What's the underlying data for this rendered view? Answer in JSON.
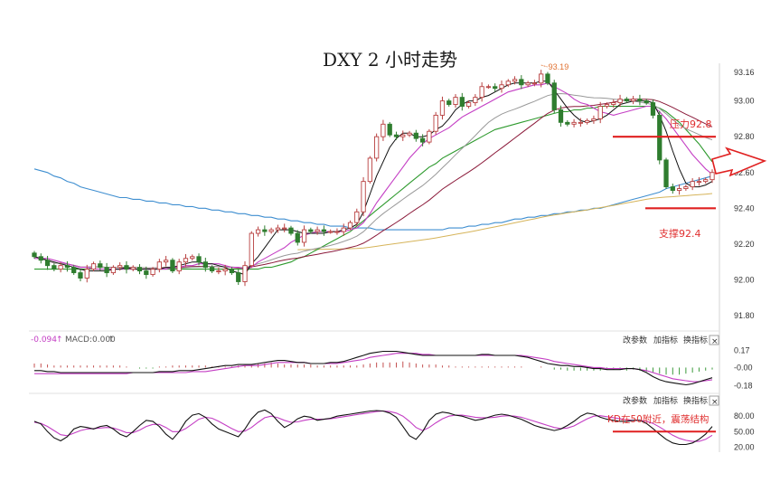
{
  "title": "DXY 2 小时走势",
  "colors": {
    "up": "#b84040",
    "down": "#2f7d2f",
    "ma5": "#111111",
    "ma10": "#c43ec4",
    "ma20": "#999999",
    "ma30": "#8b1a3a",
    "ma60": "#2e9a2e",
    "ma120": "#d6b45a",
    "ma250": "#3e8ed0",
    "annotation": "#e03030",
    "peak_label": "#e0702f"
  },
  "toolbar": {
    "change_params": "改参数",
    "add_indicator": "加指标",
    "switch_indicator": "换指标",
    "close": "×"
  },
  "annotations": {
    "peak": "93.19",
    "resistance": "压力92.8",
    "support": "支撑92.4",
    "kd_note": "KD在50附近，震荡结构",
    "macd_left": "-0.094",
    "macd_label": "MACD:0.000"
  },
  "chart_data": [
    {
      "type": "candlestick",
      "panel": "price",
      "y_ticks": [
        "93.16",
        "93.00",
        "92.80",
        "92.60",
        "92.40",
        "92.20",
        "92.00",
        "91.80"
      ],
      "ylim": [
        91.76,
        93.2
      ],
      "peak_value": 93.19,
      "resistance_level": 92.8,
      "support_level": 92.4,
      "close": [
        92.13,
        92.11,
        92.08,
        92.06,
        92.08,
        92.07,
        92.04,
        92.01,
        92.06,
        92.09,
        92.07,
        92.04,
        92.07,
        92.08,
        92.06,
        92.07,
        92.05,
        92.03,
        92.06,
        92.1,
        92.11,
        92.05,
        92.1,
        92.12,
        92.13,
        92.1,
        92.07,
        92.05,
        92.05,
        92.06,
        92.04,
        91.99,
        92.08,
        92.26,
        92.28,
        92.27,
        92.28,
        92.29,
        92.29,
        92.26,
        92.21,
        92.28,
        92.27,
        92.28,
        92.27,
        92.27,
        92.27,
        92.29,
        92.32,
        92.38,
        92.55,
        92.68,
        92.8,
        92.87,
        92.81,
        92.8,
        92.81,
        92.82,
        92.79,
        92.77,
        92.83,
        92.92,
        93.0,
        92.98,
        93.02,
        92.97,
        92.99,
        93.02,
        93.08,
        93.08,
        93.07,
        93.09,
        93.11,
        93.12,
        93.09,
        93.1,
        93.1,
        93.15,
        93.1,
        92.95,
        92.88,
        92.87,
        92.88,
        92.88,
        92.89,
        92.9,
        92.97,
        92.98,
        92.99,
        93.01,
        93.0,
        93.01,
        93.0,
        92.99,
        92.92,
        92.67,
        92.52,
        92.5,
        92.51,
        92.52,
        92.55,
        92.55,
        92.56,
        92.6
      ],
      "ma5": [
        92.13,
        92.12,
        92.11,
        92.1,
        92.09,
        92.08,
        92.07,
        92.06,
        92.05,
        92.05,
        92.05,
        92.05,
        92.06,
        92.06,
        92.07,
        92.06,
        92.06,
        92.06,
        92.06,
        92.06,
        92.07,
        92.07,
        92.08,
        92.09,
        92.1,
        92.1,
        92.09,
        92.09,
        92.08,
        92.07,
        92.05,
        92.04,
        92.03,
        92.09,
        92.13,
        92.18,
        92.23,
        92.28,
        92.28,
        92.28,
        92.27,
        92.26,
        92.26,
        92.26,
        92.26,
        92.27,
        92.27,
        92.28,
        92.29,
        92.31,
        92.38,
        92.48,
        92.58,
        92.66,
        92.74,
        92.79,
        92.82,
        92.82,
        92.8,
        92.8,
        92.81,
        92.84,
        92.86,
        92.9,
        92.95,
        92.98,
        93.0,
        93.0,
        93.02,
        93.03,
        93.05,
        93.07,
        93.09,
        93.1,
        93.1,
        93.1,
        93.1,
        93.11,
        93.11,
        93.06,
        93.01,
        92.96,
        92.92,
        92.89,
        92.88,
        92.89,
        92.9,
        92.92,
        92.95,
        92.98,
        92.99,
        93.0,
        93.0,
        93.0,
        92.99,
        92.92,
        92.83,
        92.72,
        92.62,
        92.54,
        92.52,
        92.52,
        92.53,
        92.55
      ],
      "ma10": [
        92.12,
        92.12,
        92.12,
        92.11,
        92.1,
        92.09,
        92.08,
        92.07,
        92.07,
        92.06,
        92.06,
        92.06,
        92.06,
        92.06,
        92.06,
        92.06,
        92.06,
        92.06,
        92.06,
        92.06,
        92.06,
        92.07,
        92.07,
        92.08,
        92.08,
        92.09,
        92.09,
        92.09,
        92.09,
        92.08,
        92.07,
        92.07,
        92.06,
        92.07,
        92.1,
        92.12,
        92.14,
        92.16,
        92.18,
        92.21,
        92.23,
        92.25,
        92.26,
        92.27,
        92.27,
        92.27,
        92.27,
        92.27,
        92.28,
        92.29,
        92.32,
        92.37,
        92.43,
        92.48,
        92.53,
        92.58,
        92.63,
        92.68,
        92.72,
        92.76,
        92.79,
        92.81,
        92.83,
        92.85,
        92.88,
        92.91,
        92.93,
        92.95,
        92.97,
        92.99,
        93.01,
        93.03,
        93.05,
        93.06,
        93.07,
        93.08,
        93.09,
        93.09,
        93.1,
        93.08,
        93.06,
        93.04,
        93.01,
        92.99,
        92.98,
        92.96,
        92.94,
        92.93,
        92.92,
        92.93,
        92.94,
        92.95,
        92.96,
        92.97,
        92.97,
        92.94,
        92.9,
        92.85,
        92.8,
        92.75,
        92.7,
        92.66,
        92.62,
        92.59
      ],
      "ma60": [
        92.06,
        92.06,
        92.06,
        92.06,
        92.06,
        92.06,
        92.06,
        92.06,
        92.06,
        92.06,
        92.06,
        92.06,
        92.06,
        92.06,
        92.06,
        92.06,
        92.06,
        92.06,
        92.06,
        92.06,
        92.06,
        92.06,
        92.06,
        92.06,
        92.06,
        92.06,
        92.06,
        92.06,
        92.06,
        92.06,
        92.06,
        92.06,
        92.06,
        92.06,
        92.06,
        92.07,
        92.07,
        92.08,
        92.09,
        92.1,
        92.12,
        92.13,
        92.15,
        92.17,
        92.19,
        92.21,
        92.23,
        92.25,
        92.27,
        92.3,
        92.33,
        92.36,
        92.39,
        92.42,
        92.45,
        92.48,
        92.51,
        92.54,
        92.57,
        92.6,
        92.63,
        92.65,
        92.68,
        92.7,
        92.72,
        92.74,
        92.76,
        92.78,
        92.8,
        92.82,
        92.84,
        92.85,
        92.86,
        92.87,
        92.88,
        92.89,
        92.9,
        92.91,
        92.92,
        92.93,
        92.94,
        92.94,
        92.95,
        92.95,
        92.96,
        92.96,
        92.97,
        92.97,
        92.97,
        92.97,
        92.97,
        92.97,
        92.97,
        92.97,
        92.97,
        92.96,
        92.94,
        92.91,
        92.88,
        92.84,
        92.8,
        92.76,
        92.71,
        92.66
      ],
      "ma250": [
        92.62,
        92.61,
        92.6,
        92.58,
        92.57,
        92.55,
        92.54,
        92.52,
        92.51,
        92.5,
        92.49,
        92.48,
        92.47,
        92.46,
        92.46,
        92.45,
        92.45,
        92.44,
        92.44,
        92.43,
        92.43,
        92.42,
        92.42,
        92.41,
        92.41,
        92.4,
        92.4,
        92.39,
        92.39,
        92.38,
        92.38,
        92.37,
        92.37,
        92.36,
        92.36,
        92.35,
        92.35,
        92.34,
        92.34,
        92.33,
        92.33,
        92.32,
        92.32,
        92.31,
        92.31,
        92.3,
        92.3,
        92.3,
        92.29,
        92.29,
        92.29,
        92.29,
        92.28,
        92.28,
        92.28,
        92.28,
        92.28,
        92.28,
        92.28,
        92.28,
        92.28,
        92.28,
        92.28,
        92.29,
        92.29,
        92.29,
        92.3,
        92.3,
        92.31,
        92.31,
        92.32,
        92.32,
        92.33,
        92.34,
        92.34,
        92.35,
        92.35,
        92.36,
        92.36,
        92.37,
        92.37,
        92.38,
        92.38,
        92.39,
        92.39,
        92.4,
        92.4,
        92.41,
        92.42,
        92.43,
        92.44,
        92.45,
        92.46,
        92.47,
        92.48,
        92.49,
        92.51,
        92.52,
        92.53,
        92.54,
        92.55,
        92.56,
        92.57,
        92.58
      ]
    },
    {
      "type": "macd",
      "panel": "macd",
      "y_ticks": [
        "0.17",
        "-0.00",
        "-0.18"
      ],
      "ylim": [
        -0.21,
        0.2
      ],
      "histogram": [
        0.04,
        0.04,
        0.03,
        0.02,
        0.02,
        0.02,
        0.02,
        0.02,
        0.02,
        0.02,
        0.02,
        0.02,
        0.02,
        0.02,
        0.01,
        0.0,
        -0.01,
        -0.01,
        -0.01,
        0.01,
        0.01,
        0.02,
        0.02,
        0.02,
        0.02,
        0.02,
        0.02,
        0.01,
        0.01,
        0.01,
        0.01,
        0.02,
        0.02,
        0.03,
        0.04,
        0.04,
        0.05,
        0.04,
        0.03,
        0.03,
        0.03,
        0.03,
        0.03,
        0.02,
        0.02,
        0.02,
        0.02,
        0.02,
        0.02,
        0.02,
        0.03,
        0.04,
        0.05,
        0.05,
        0.05,
        0.05,
        0.06,
        0.05,
        0.04,
        0.03,
        0.03,
        0.03,
        0.02,
        0.02,
        0.01,
        0.01,
        0.01,
        0.01,
        0.01,
        0.01,
        0.01,
        0.01,
        0.01,
        0.01,
        0.01,
        0.0,
        0.0,
        0.01,
        0.0,
        -0.02,
        -0.02,
        -0.03,
        -0.03,
        -0.03,
        -0.03,
        -0.03,
        -0.03,
        -0.02,
        -0.02,
        -0.02,
        -0.03,
        -0.02,
        -0.03,
        -0.04,
        -0.05,
        -0.06,
        -0.07,
        -0.07,
        -0.07,
        -0.06,
        -0.05,
        -0.04,
        -0.03,
        -0.02
      ],
      "dif": [
        -0.03,
        -0.03,
        -0.04,
        -0.04,
        -0.05,
        -0.05,
        -0.05,
        -0.05,
        -0.05,
        -0.05,
        -0.05,
        -0.05,
        -0.05,
        -0.05,
        -0.05,
        -0.05,
        -0.05,
        -0.05,
        -0.05,
        -0.04,
        -0.04,
        -0.04,
        -0.03,
        -0.03,
        -0.03,
        -0.02,
        -0.01,
        0.0,
        0.01,
        0.02,
        0.02,
        0.03,
        0.03,
        0.03,
        0.04,
        0.05,
        0.06,
        0.07,
        0.07,
        0.06,
        0.05,
        0.05,
        0.04,
        0.04,
        0.04,
        0.05,
        0.05,
        0.06,
        0.08,
        0.1,
        0.12,
        0.14,
        0.15,
        0.16,
        0.16,
        0.16,
        0.15,
        0.14,
        0.13,
        0.12,
        0.12,
        0.12,
        0.12,
        0.12,
        0.12,
        0.12,
        0.12,
        0.12,
        0.13,
        0.13,
        0.12,
        0.12,
        0.12,
        0.12,
        0.11,
        0.1,
        0.08,
        0.06,
        0.04,
        0.03,
        0.02,
        0.02,
        0.01,
        0.01,
        0.0,
        -0.01,
        -0.01,
        -0.02,
        -0.02,
        -0.02,
        -0.01,
        -0.01,
        -0.02,
        -0.05,
        -0.09,
        -0.12,
        -0.14,
        -0.15,
        -0.16,
        -0.17,
        -0.16,
        -0.14,
        -0.12,
        -0.1
      ],
      "dea": [
        -0.06,
        -0.06,
        -0.06,
        -0.06,
        -0.06,
        -0.06,
        -0.06,
        -0.06,
        -0.06,
        -0.06,
        -0.06,
        -0.06,
        -0.06,
        -0.06,
        -0.06,
        -0.05,
        -0.05,
        -0.05,
        -0.05,
        -0.05,
        -0.05,
        -0.05,
        -0.05,
        -0.05,
        -0.04,
        -0.04,
        -0.04,
        -0.03,
        -0.02,
        -0.01,
        0.0,
        0.01,
        0.02,
        0.02,
        0.02,
        0.03,
        0.04,
        0.05,
        0.05,
        0.05,
        0.05,
        0.05,
        0.04,
        0.04,
        0.04,
        0.04,
        0.04,
        0.05,
        0.06,
        0.07,
        0.08,
        0.1,
        0.11,
        0.12,
        0.13,
        0.14,
        0.14,
        0.14,
        0.14,
        0.13,
        0.13,
        0.12,
        0.12,
        0.12,
        0.12,
        0.12,
        0.12,
        0.12,
        0.12,
        0.12,
        0.12,
        0.12,
        0.12,
        0.12,
        0.12,
        0.11,
        0.1,
        0.09,
        0.08,
        0.06,
        0.05,
        0.04,
        0.03,
        0.02,
        0.01,
        0.0,
        0.0,
        -0.01,
        -0.01,
        -0.01,
        -0.01,
        -0.01,
        -0.02,
        -0.03,
        -0.05,
        -0.07,
        -0.09,
        -0.11,
        -0.12,
        -0.13,
        -0.14,
        -0.14,
        -0.13,
        -0.12
      ]
    },
    {
      "type": "kd",
      "panel": "kd",
      "y_ticks": [
        "80.00",
        "50.00",
        "20.00"
      ],
      "ylim": [
        10,
        98
      ],
      "reference_level": 50,
      "k": [
        70,
        65,
        50,
        38,
        32,
        40,
        55,
        60,
        58,
        55,
        60,
        62,
        55,
        45,
        40,
        50,
        62,
        72,
        70,
        60,
        45,
        35,
        50,
        70,
        82,
        85,
        78,
        65,
        55,
        50,
        45,
        40,
        55,
        75,
        88,
        92,
        85,
        70,
        58,
        65,
        75,
        80,
        78,
        72,
        74,
        76,
        80,
        82,
        84,
        86,
        88,
        90,
        91,
        90,
        86,
        78,
        60,
        42,
        35,
        50,
        72,
        84,
        88,
        86,
        82,
        80,
        76,
        72,
        74,
        78,
        82,
        84,
        82,
        78,
        74,
        68,
        62,
        58,
        55,
        52,
        55,
        62,
        70,
        80,
        86,
        84,
        78,
        74,
        72,
        70,
        70,
        72,
        72,
        66,
        56,
        45,
        35,
        28,
        25,
        25,
        28,
        35,
        45,
        60
      ],
      "d": [
        68,
        66,
        60,
        52,
        44,
        42,
        47,
        52,
        55,
        56,
        57,
        58,
        57,
        53,
        48,
        48,
        53,
        60,
        64,
        64,
        58,
        50,
        50,
        56,
        65,
        74,
        78,
        76,
        70,
        63,
        56,
        50,
        51,
        58,
        68,
        77,
        80,
        77,
        72,
        68,
        69,
        72,
        74,
        74,
        74,
        75,
        77,
        79,
        81,
        83,
        85,
        87,
        89,
        90,
        89,
        86,
        80,
        70,
        58,
        52,
        58,
        67,
        75,
        80,
        82,
        82,
        80,
        78,
        77,
        77,
        78,
        80,
        81,
        80,
        78,
        74,
        70,
        66,
        62,
        58,
        56,
        57,
        61,
        68,
        75,
        80,
        81,
        79,
        77,
        75,
        73,
        72,
        72,
        70,
        66,
        59,
        51,
        43,
        37,
        33,
        31,
        31,
        35,
        43
      ]
    }
  ]
}
